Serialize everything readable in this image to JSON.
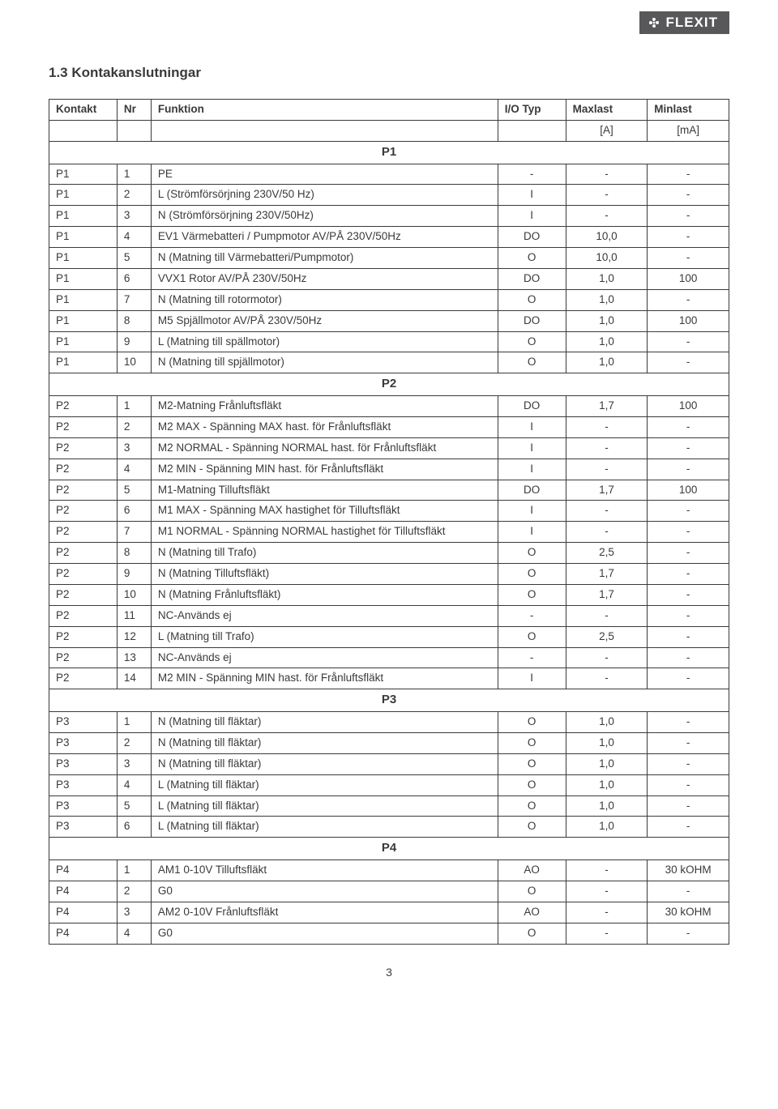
{
  "brand": "FLEXIT",
  "section_title": "1.3  Kontakanslutningar",
  "page_number": "3",
  "columns": [
    "Kontakt",
    "Nr",
    "Funktion",
    "I/O Typ",
    "Maxlast",
    "Minlast"
  ],
  "unit_row": [
    "",
    "",
    "",
    "",
    "[A]",
    "[mA]"
  ],
  "groups": [
    {
      "label": "P1",
      "rows": [
        [
          "P1",
          "1",
          "PE",
          "-",
          "-",
          "-"
        ],
        [
          "P1",
          "2",
          "L (Strömförsörjning 230V/50 Hz)",
          "I",
          "-",
          "-"
        ],
        [
          "P1",
          "3",
          "N (Strömförsörjning 230V/50Hz)",
          "I",
          "-",
          "-"
        ],
        [
          "P1",
          "4",
          "EV1 Värmebatteri / Pumpmotor AV/PÅ 230V/50Hz",
          "DO",
          "10,0",
          "-"
        ],
        [
          "P1",
          "5",
          "N (Matning till Värmebatteri/Pumpmotor)",
          "O",
          "10,0",
          "-"
        ],
        [
          "P1",
          "6",
          "VVX1 Rotor AV/PÅ 230V/50Hz",
          "DO",
          "1,0",
          "100"
        ],
        [
          "P1",
          "7",
          "N (Matning till rotormotor)",
          "O",
          "1,0",
          "-"
        ],
        [
          "P1",
          "8",
          "M5 Spjällmotor AV/PÅ 230V/50Hz",
          "DO",
          "1,0",
          "100"
        ],
        [
          "P1",
          "9",
          "L (Matning till spällmotor)",
          "O",
          "1,0",
          "-"
        ],
        [
          "P1",
          "10",
          "N (Matning till spjällmotor)",
          "O",
          "1,0",
          "-"
        ]
      ]
    },
    {
      "label": "P2",
      "rows": [
        [
          "P2",
          "1",
          "M2-Matning Frånluftsfläkt",
          "DO",
          "1,7",
          "100"
        ],
        [
          "P2",
          "2",
          "M2 MAX - Spänning MAX hast. för Frånluftsfläkt",
          "I",
          "-",
          "-"
        ],
        [
          "P2",
          "3",
          "M2 NORMAL - Spänning NORMAL hast. för Frånluftsfläkt",
          "I",
          "-",
          "-"
        ],
        [
          "P2",
          "4",
          "M2 MIN - Spänning MIN hast. för Frånluftsfläkt",
          "I",
          "-",
          "-"
        ],
        [
          "P2",
          "5",
          "M1-Matning Tilluftsfläkt",
          "DO",
          "1,7",
          "100"
        ],
        [
          "P2",
          "6",
          "M1 MAX - Spänning MAX hastighet för Tilluftsfläkt",
          "I",
          "-",
          "-"
        ],
        [
          "P2",
          "7",
          "M1 NORMAL - Spänning NORMAL hastighet för Tilluftsfläkt",
          "I",
          "-",
          "-"
        ],
        [
          "P2",
          "8",
          "N (Matning till Trafo)",
          "O",
          "2,5",
          "-"
        ],
        [
          "P2",
          "9",
          "N (Matning Tilluftsfläkt)",
          "O",
          "1,7",
          "-"
        ],
        [
          "P2",
          "10",
          "N (Matning Frånluftsfläkt)",
          "O",
          "1,7",
          "-"
        ],
        [
          "P2",
          "11",
          "NC-Används ej",
          "-",
          "-",
          "-"
        ],
        [
          "P2",
          "12",
          "L (Matning till Trafo)",
          "O",
          "2,5",
          "-"
        ],
        [
          "P2",
          "13",
          "NC-Används ej",
          "-",
          "-",
          "-"
        ],
        [
          "P2",
          "14",
          "M2 MIN - Spänning MIN hast. för Frånluftsfläkt",
          "I",
          "-",
          "-"
        ]
      ]
    },
    {
      "label": "P3",
      "rows": [
        [
          "P3",
          "1",
          "N (Matning till fläktar)",
          "O",
          "1,0",
          "-"
        ],
        [
          "P3",
          "2",
          "N (Matning till fläktar)",
          "O",
          "1,0",
          "-"
        ],
        [
          "P3",
          "3",
          "N (Matning till fläktar)",
          "O",
          "1,0",
          "-"
        ],
        [
          "P3",
          "4",
          "L (Matning till fläktar)",
          "O",
          "1,0",
          "-"
        ],
        [
          "P3",
          "5",
          "L (Matning till fläktar)",
          "O",
          "1,0",
          "-"
        ],
        [
          "P3",
          "6",
          "L (Matning till fläktar)",
          "O",
          "1,0",
          "-"
        ]
      ]
    },
    {
      "label": "P4",
      "rows": [
        [
          "P4",
          "1",
          "AM1 0-10V Tilluftsfläkt",
          "AO",
          "-",
          "30 kOHM"
        ],
        [
          "P4",
          "2",
          "G0",
          "O",
          "-",
          "-"
        ],
        [
          "P4",
          "3",
          "AM2 0-10V Frånluftsfläkt",
          "AO",
          "-",
          "30 kOHM"
        ],
        [
          "P4",
          "4",
          "G0",
          "O",
          "-",
          "-"
        ]
      ]
    }
  ],
  "colors": {
    "text": "#3a3a3a",
    "border": "#3a3a3a",
    "brand_bg": "#58585a",
    "brand_fg": "#ffffff",
    "page_bg": "#ffffff"
  }
}
